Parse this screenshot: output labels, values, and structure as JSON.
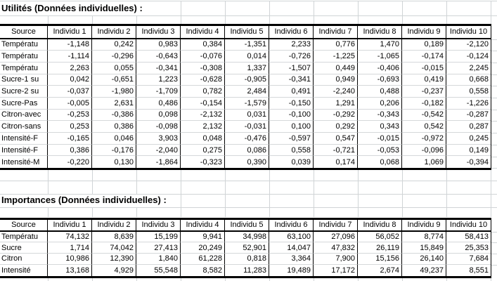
{
  "colors": {
    "background": "#ffffff",
    "gridline": "#d0d4d6",
    "table_border": "#000000",
    "text": "#000000"
  },
  "tables": [
    {
      "title": "Utilités (Données individuelles) :",
      "columns": [
        "Source",
        "Individu 1",
        "Individu 2",
        "Individu 3",
        "Individu 4",
        "Individu 5",
        "Individu 6",
        "Individu 7",
        "Individu 8",
        "Individu 9",
        "Individu 10"
      ],
      "rows": [
        {
          "label": "Températu",
          "values": [
            "-1,148",
            "0,242",
            "0,983",
            "0,384",
            "-1,351",
            "2,233",
            "0,776",
            "1,470",
            "0,189",
            "-2,120"
          ]
        },
        {
          "label": "Températu",
          "values": [
            "-1,114",
            "-0,296",
            "-0,643",
            "-0,076",
            "0,014",
            "-0,726",
            "-1,225",
            "-1,065",
            "-0,174",
            "-0,124"
          ]
        },
        {
          "label": "Températu",
          "values": [
            "2,263",
            "0,055",
            "-0,341",
            "-0,308",
            "1,337",
            "-1,507",
            "0,449",
            "-0,406",
            "-0,015",
            "2,245"
          ]
        },
        {
          "label": "Sucre-1 su",
          "values": [
            "0,042",
            "-0,651",
            "1,223",
            "-0,628",
            "-0,905",
            "-0,341",
            "0,949",
            "-0,693",
            "0,419",
            "0,668"
          ]
        },
        {
          "label": "Sucre-2 su",
          "values": [
            "-0,037",
            "-1,980",
            "-1,709",
            "0,782",
            "2,484",
            "0,491",
            "-2,240",
            "0,488",
            "-0,237",
            "0,558"
          ]
        },
        {
          "label": "Sucre-Pas",
          "values": [
            "-0,005",
            "2,631",
            "0,486",
            "-0,154",
            "-1,579",
            "-0,150",
            "1,291",
            "0,206",
            "-0,182",
            "-1,226"
          ]
        },
        {
          "label": "Citron-avec",
          "values": [
            "-0,253",
            "-0,386",
            "0,098",
            "-2,132",
            "0,031",
            "-0,100",
            "-0,292",
            "-0,343",
            "-0,542",
            "-0,287"
          ]
        },
        {
          "label": "Citron-sans",
          "values": [
            "0,253",
            "0,386",
            "-0,098",
            "2,132",
            "-0,031",
            "0,100",
            "0,292",
            "0,343",
            "0,542",
            "0,287"
          ]
        },
        {
          "label": "Intensité-F",
          "values": [
            "-0,165",
            "0,046",
            "3,903",
            "0,048",
            "-0,476",
            "-0,597",
            "0,547",
            "-0,015",
            "-0,972",
            "0,245"
          ]
        },
        {
          "label": "Intensité-F",
          "values": [
            "0,386",
            "-0,176",
            "-2,040",
            "0,275",
            "0,086",
            "0,558",
            "-0,721",
            "-0,053",
            "-0,096",
            "0,149"
          ]
        },
        {
          "label": "Intensité-M",
          "values": [
            "-0,220",
            "0,130",
            "-1,864",
            "-0,323",
            "0,390",
            "0,039",
            "0,174",
            "0,068",
            "1,069",
            "-0,394"
          ]
        }
      ]
    },
    {
      "title": "Importances (Données individuelles) :",
      "columns": [
        "Source",
        "Individu 1",
        "Individu 2",
        "Individu 3",
        "Individu 4",
        "Individu 5",
        "Individu 6",
        "Individu 7",
        "Individu 8",
        "Individu 9",
        "Individu 10"
      ],
      "rows": [
        {
          "label": "Températu",
          "values": [
            "74,132",
            "8,639",
            "15,199",
            "9,941",
            "34,998",
            "63,100",
            "27,096",
            "56,052",
            "8,774",
            "58,413"
          ]
        },
        {
          "label": "Sucre",
          "values": [
            "1,714",
            "74,042",
            "27,413",
            "20,249",
            "52,901",
            "14,047",
            "47,832",
            "26,119",
            "15,849",
            "25,353"
          ]
        },
        {
          "label": "Citron",
          "values": [
            "10,986",
            "12,390",
            "1,840",
            "61,228",
            "0,818",
            "3,364",
            "7,900",
            "15,156",
            "26,140",
            "7,684"
          ]
        },
        {
          "label": "Intensité",
          "values": [
            "13,168",
            "4,929",
            "55,548",
            "8,582",
            "11,283",
            "19,489",
            "17,172",
            "2,674",
            "49,237",
            "8,551"
          ]
        }
      ]
    }
  ]
}
